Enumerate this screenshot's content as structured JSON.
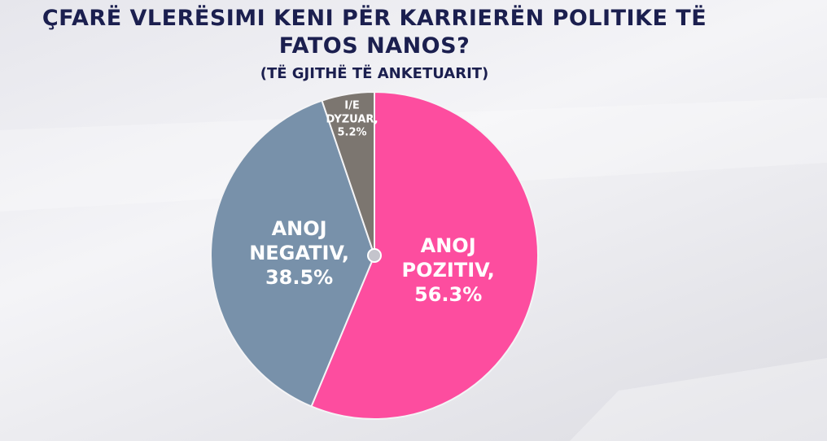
{
  "chart_data": {
    "type": "pie",
    "title": "ÇFARË VLERËSIMI KENI PËR KARRIERËN POLITIKE TË FATOS NANOS?",
    "subtitle": "(TË GJITHË TË ANKETUARIT)",
    "categories": [
      "ANOJ POZITIV,",
      "ANOJ NEGATIV,",
      "I/E DYZUAR,"
    ],
    "values": [
      56.3,
      38.5,
      5.2
    ],
    "value_labels": [
      "56.3%",
      "38.5%",
      "5.2%"
    ],
    "colors": [
      "#fd4d9f",
      "#7891aa",
      "#7c7670"
    ]
  }
}
